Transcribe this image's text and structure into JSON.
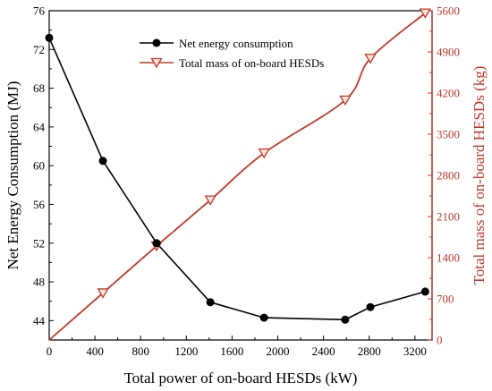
{
  "chart_data": {
    "type": "line",
    "xlabel": "Total power of on-board HESDs (kW)",
    "ylabel_left": "Net Energy Consumption (MJ)",
    "ylabel_right": "Total mass of on-board HESDs (kg)",
    "xlim": [
      0,
      3350
    ],
    "ylim_left": [
      42,
      76
    ],
    "ylim_right": [
      0,
      5600
    ],
    "x_ticks": [
      0,
      400,
      800,
      1200,
      1600,
      2000,
      2400,
      2800,
      3200
    ],
    "y_left_ticks": [
      44,
      48,
      52,
      56,
      60,
      64,
      68,
      72,
      76
    ],
    "y_right_ticks": [
      0,
      700,
      1400,
      2100,
      2800,
      3500,
      4200,
      4900,
      5600
    ],
    "legend_position": "upper-center",
    "series": [
      {
        "name": "Net energy consumption",
        "axis": "left",
        "color": "#000000",
        "marker": "circle",
        "x": [
          0,
          470,
          940,
          1410,
          1880,
          2590,
          2810,
          3290
        ],
        "y": [
          73.2,
          60.5,
          52.0,
          45.9,
          44.3,
          44.1,
          45.4,
          47.0
        ]
      },
      {
        "name": "Total mass of on-board HESDs",
        "axis": "right",
        "color": "#c0392b",
        "marker": "triangle-down",
        "x": [
          0,
          470,
          940,
          1410,
          1880,
          2590,
          2810,
          3290
        ],
        "y": [
          0,
          800,
          1600,
          2380,
          3180,
          4080,
          4790,
          5560
        ]
      }
    ]
  }
}
